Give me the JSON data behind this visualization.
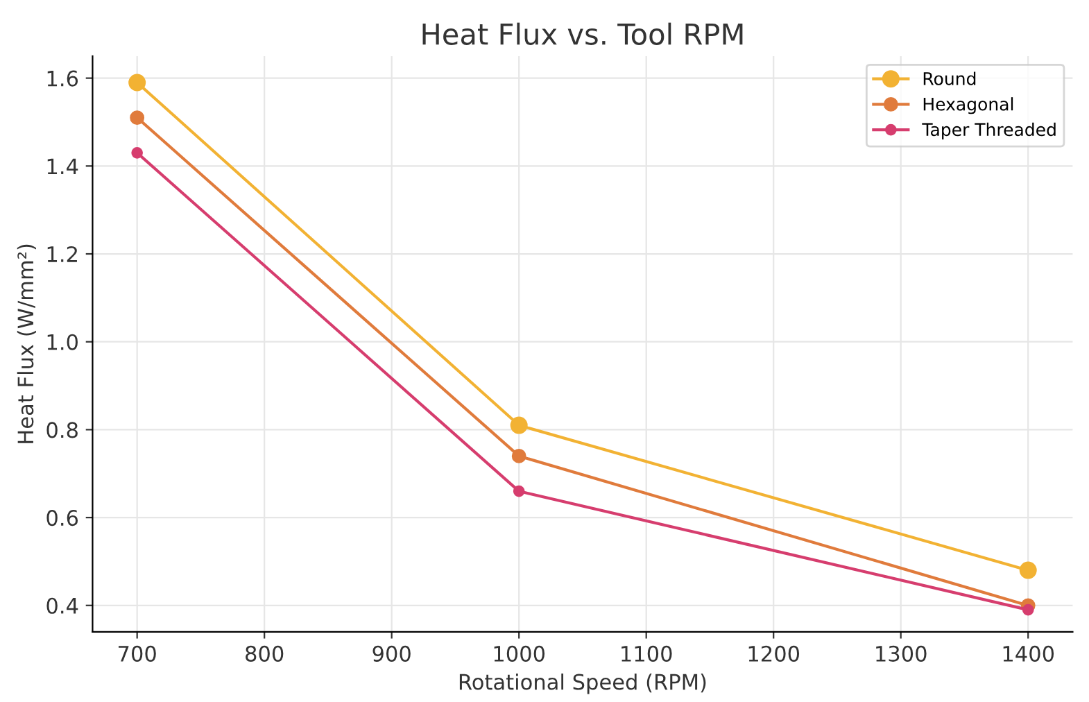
{
  "chart_data": {
    "type": "line",
    "title": "Heat Flux vs. Tool RPM",
    "xlabel": "Rotational Speed (RPM)",
    "ylabel": "Heat Flux (W/mm²)",
    "x": [
      700,
      1000,
      1400
    ],
    "series": [
      {
        "name": "Round",
        "color": "#f2b233",
        "values": [
          1.59,
          0.81,
          0.48
        ]
      },
      {
        "name": "Hexagonal",
        "color": "#e07b3c",
        "values": [
          1.51,
          0.74,
          0.4
        ]
      },
      {
        "name": "Taper Threaded",
        "color": "#d63d6e",
        "values": [
          1.43,
          0.66,
          0.39
        ]
      }
    ],
    "xlim": [
      665,
      1435
    ],
    "xticks": [
      700,
      800,
      900,
      1000,
      1100,
      1200,
      1300,
      1400
    ],
    "ylim": [
      0.34,
      1.65
    ],
    "yticks": [
      0.4,
      0.6,
      0.8,
      {
        "value": 1.0,
        "label": "1.0"
      },
      1.2,
      1.4,
      1.6
    ],
    "grid": true,
    "legend": "top right",
    "marker": "circle",
    "line_style": "solid"
  }
}
